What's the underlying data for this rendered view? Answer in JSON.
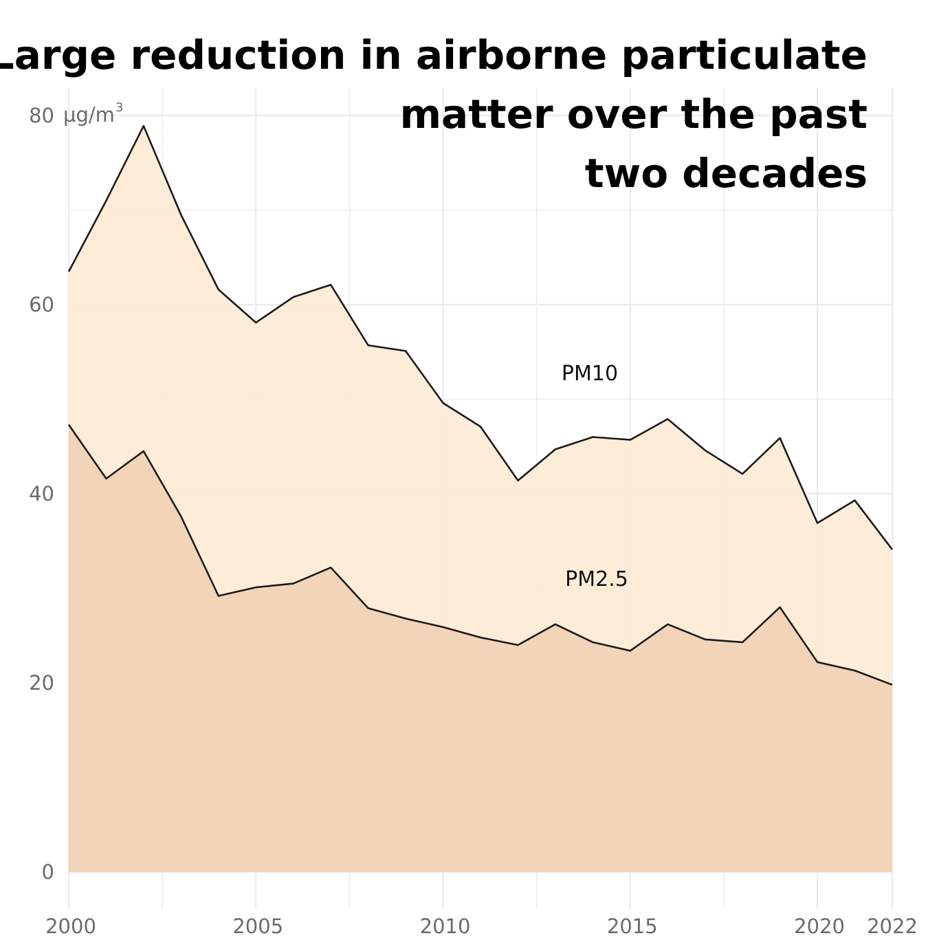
{
  "chart_data": {
    "type": "area",
    "title": "Large reduction in airborne particulate matter over the past two decades",
    "title_lines": [
      "Large reduction in airborne particulate",
      "matter over the past",
      "two decades"
    ],
    "unit_label": "µg/m",
    "unit_superscript": "3",
    "x": [
      2000,
      2001,
      2002,
      2003,
      2004,
      2005,
      2006,
      2007,
      2008,
      2009,
      2010,
      2011,
      2012,
      2013,
      2014,
      2015,
      2016,
      2017,
      2018,
      2019,
      2020,
      2021,
      2022
    ],
    "xlim": [
      2000,
      2022
    ],
    "ylim": [
      0,
      80
    ],
    "x_ticks": [
      "2000",
      "2005",
      "2010",
      "2015",
      "2020",
      "2022"
    ],
    "y_ticks": [
      "0",
      "20",
      "40",
      "60",
      "80"
    ],
    "series": [
      {
        "name": "PM10",
        "values": [
          63.5,
          71.0,
          78.9,
          69.5,
          61.6,
          58.1,
          60.8,
          62.1,
          55.7,
          55.1,
          49.6,
          47.1,
          41.4,
          44.7,
          46.0,
          45.7,
          47.9,
          44.6,
          42.1,
          45.9,
          36.9,
          39.3,
          34.1
        ],
        "color": "#fdebd3"
      },
      {
        "name": "PM2.5",
        "values": [
          47.3,
          41.6,
          44.5,
          37.6,
          29.2,
          30.1,
          30.5,
          32.2,
          27.9,
          26.8,
          25.9,
          24.8,
          24.0,
          26.2,
          24.3,
          23.4,
          26.2,
          24.6,
          24.3,
          28.0,
          22.2,
          21.3,
          19.8
        ],
        "color": "#f0d1b4"
      }
    ],
    "grid": true,
    "line_color": "#1a1a1a",
    "grid_color": "#ebebeb"
  }
}
